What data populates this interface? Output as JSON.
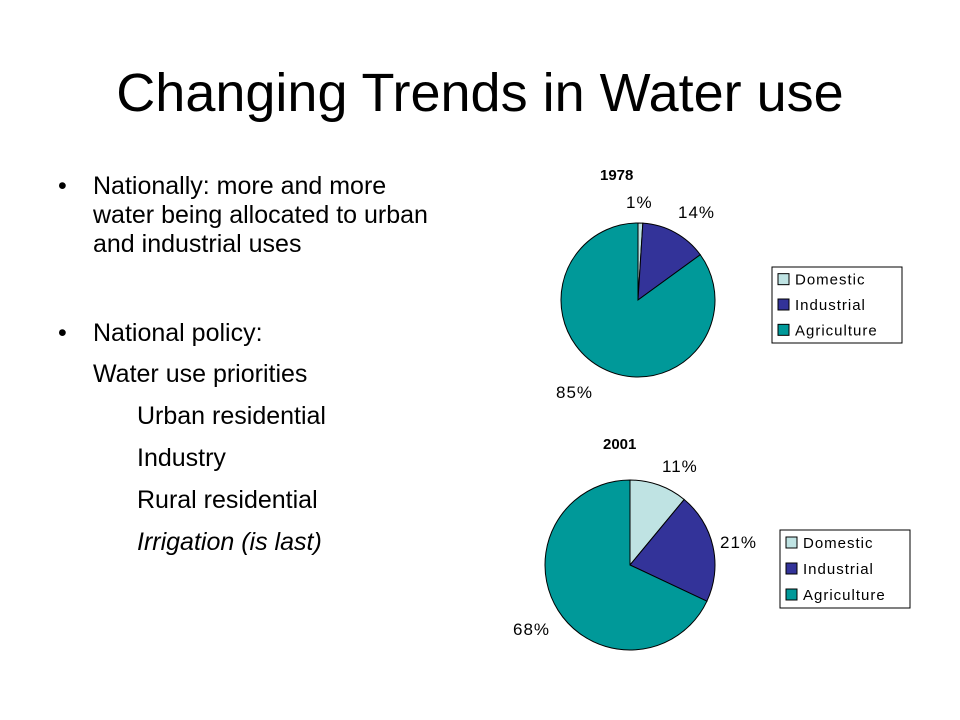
{
  "slide": {
    "title": "Changing Trends in Water use",
    "bullets": [
      {
        "symbol": "•",
        "text": "Nationally:  more and more water being allocated to urban and industrial uses"
      },
      {
        "symbol": "•",
        "text": "National policy:"
      }
    ],
    "priorities_heading": "Water use priorities",
    "priorities": [
      "Urban residential",
      "Industry",
      "Rural residential",
      "Irrigation (is last)"
    ]
  },
  "colors": {
    "domestic": "#BFE3E3",
    "industrial": "#333399",
    "agriculture": "#009999",
    "outline": "#000000"
  },
  "chart_data": [
    {
      "type": "pie",
      "title": "1978",
      "categories": [
        "Domestic",
        "Industrial",
        "Agriculture"
      ],
      "values": [
        1,
        14,
        85
      ],
      "data_labels": [
        "1%",
        "14%",
        "85%"
      ],
      "legend": [
        "Domestic",
        "Industrial",
        "Agriculture"
      ],
      "legend_position": "right"
    },
    {
      "type": "pie",
      "title": "2001",
      "categories": [
        "Domestic",
        "Industrial",
        "Agriculture"
      ],
      "values": [
        11,
        21,
        68
      ],
      "data_labels": [
        "11%",
        "21%",
        "68%"
      ],
      "legend": [
        "Domestic",
        "Industrial",
        "Agriculture"
      ],
      "legend_position": "right"
    }
  ]
}
